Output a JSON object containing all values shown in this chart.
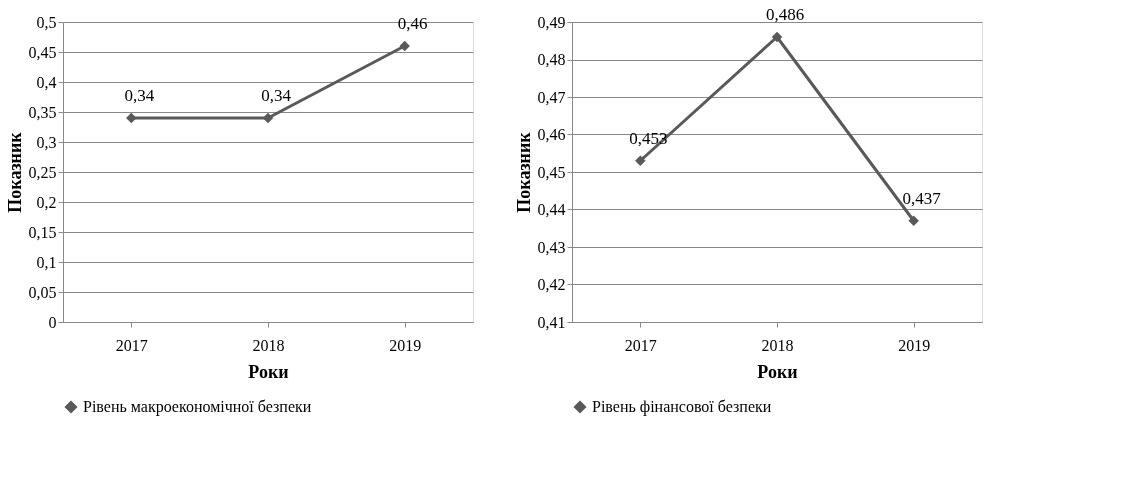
{
  "chart_data": [
    {
      "type": "line",
      "categories": [
        "2017",
        "2018",
        "2019"
      ],
      "xlabel": "Роки",
      "ylabel": "Показник",
      "series": [
        {
          "name": "Рівень макроекономічної безпеки",
          "color": "#595959",
          "values": [
            0.34,
            0.34,
            0.46
          ]
        }
      ],
      "value_labels": [
        "0,34",
        "0,34",
        "0,46"
      ],
      "ylim": [
        0,
        0.5
      ],
      "yticks": [
        {
          "value": 0,
          "label": "0"
        },
        {
          "value": 0.05,
          "label": "0,05"
        },
        {
          "value": 0.1,
          "label": "0,1"
        },
        {
          "value": 0.15,
          "label": "0,15"
        },
        {
          "value": 0.2,
          "label": "0,2"
        },
        {
          "value": 0.25,
          "label": "0,25"
        },
        {
          "value": 0.3,
          "label": "0,3"
        },
        {
          "value": 0.35,
          "label": "0,35"
        },
        {
          "value": 0.4,
          "label": "0,4"
        },
        {
          "value": 0.45,
          "label": "0,45"
        },
        {
          "value": 0.5,
          "label": "0,5"
        }
      ],
      "grid": "y",
      "legend": "bottom",
      "marker": "diamond",
      "line_style": "solid"
    },
    {
      "type": "line",
      "categories": [
        "2017",
        "2018",
        "2019"
      ],
      "xlabel": "Роки",
      "ylabel": "Показник",
      "series": [
        {
          "name": "Рівень фінансової безпеки",
          "color": "#595959",
          "values": [
            0.453,
            0.486,
            0.437
          ]
        }
      ],
      "value_labels": [
        "0,453",
        "0,486",
        "0,437"
      ],
      "ylim": [
        0.41,
        0.49
      ],
      "yticks": [
        {
          "value": 0.41,
          "label": "0,41"
        },
        {
          "value": 0.42,
          "label": "0,42"
        },
        {
          "value": 0.43,
          "label": "0,43"
        },
        {
          "value": 0.44,
          "label": "0,44"
        },
        {
          "value": 0.45,
          "label": "0,45"
        },
        {
          "value": 0.46,
          "label": "0,46"
        },
        {
          "value": 0.47,
          "label": "0,47"
        },
        {
          "value": 0.48,
          "label": "0,48"
        },
        {
          "value": 0.49,
          "label": "0,49"
        }
      ],
      "grid": "y",
      "legend": "bottom",
      "marker": "diamond",
      "line_style": "solid"
    }
  ]
}
